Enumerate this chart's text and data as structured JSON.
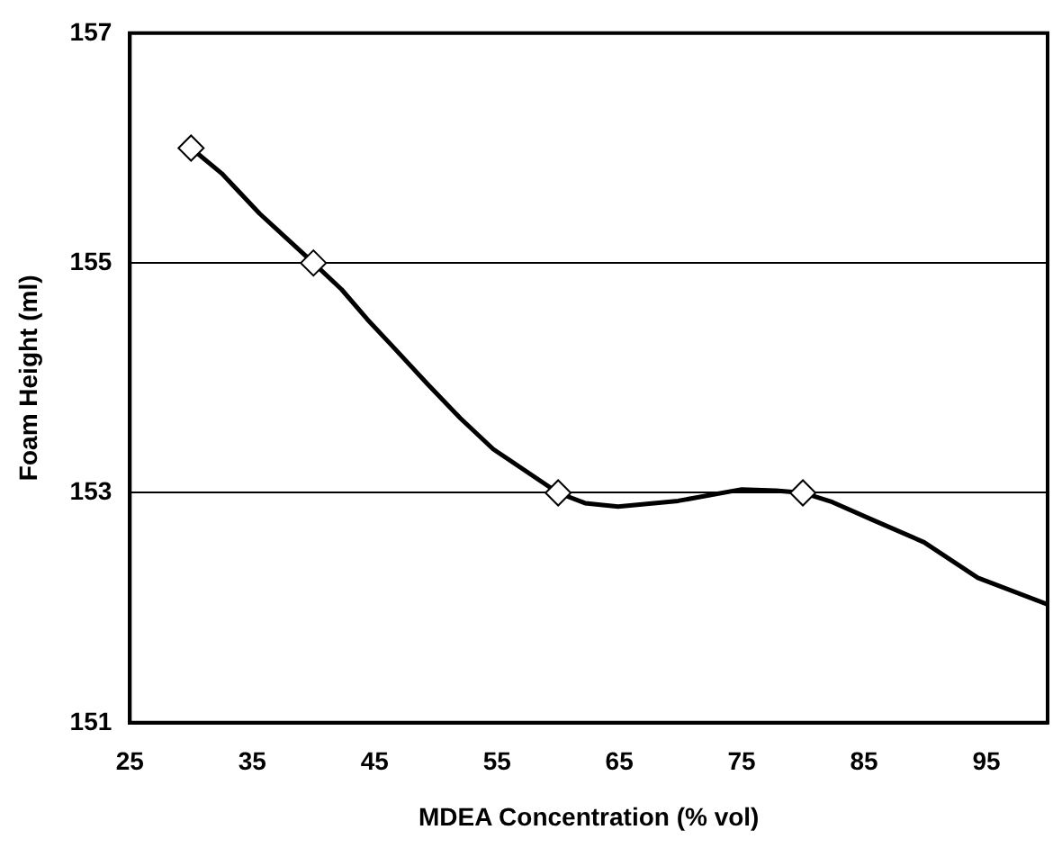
{
  "chart_data": {
    "type": "line",
    "xlabel": "MDEA Concentration (% vol)",
    "ylabel": "Foam Height (ml)",
    "xlim": [
      25,
      100
    ],
    "xticks": [
      25,
      35,
      45,
      55,
      65,
      75,
      85,
      95
    ],
    "ylim": [
      151,
      157
    ],
    "yticks": [
      151,
      153,
      155,
      157
    ],
    "grid": "y",
    "legend": false,
    "series": [
      {
        "color": "#000000",
        "marker": "none",
        "x": [
          30,
          32.5,
          35.6,
          40,
          42.3,
          44.4,
          46.6,
          49.3,
          52,
          54.7,
          60,
          62.2,
          64.9,
          69.8,
          75,
          77.8,
          80,
          82.4,
          85.8,
          89.9,
          94.3,
          100
        ],
        "values": [
          156,
          155.78,
          155.43,
          155,
          154.77,
          154.51,
          154.26,
          153.95,
          153.65,
          153.38,
          153,
          152.91,
          152.88,
          152.93,
          153.03,
          153.02,
          153,
          152.92,
          152.76,
          152.57,
          152.26,
          152.03
        ]
      },
      {
        "type": "scatter",
        "color": "#000000",
        "marker": "diamond",
        "x": [
          30,
          40,
          60,
          80
        ],
        "values": [
          156,
          155,
          153,
          153
        ]
      }
    ]
  }
}
